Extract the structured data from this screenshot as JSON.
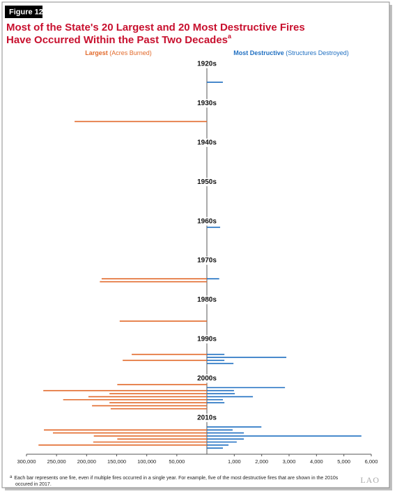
{
  "figure": "Figure 12",
  "chart_data": {
    "type": "butterfly-bar",
    "title": [
      "Most of the State's 20 Largest and 20 Most Destructive Fires",
      "Have Occurred Within the Past Two Decades"
    ],
    "title_note": "a",
    "categories": [
      "1920s",
      null,
      null,
      null,
      null,
      null,
      null,
      null,
      null,
      null,
      null,
      null,
      null,
      "1930s",
      null,
      null,
      null,
      null,
      null,
      null,
      null,
      null,
      null,
      null,
      null,
      null,
      "1940s",
      null,
      null,
      null,
      null,
      null,
      null,
      null,
      null,
      null,
      null,
      null,
      null,
      "1950s",
      null,
      null,
      null,
      null,
      null,
      null,
      null,
      null,
      null,
      null,
      null,
      null,
      "1960s",
      null,
      null,
      null,
      null,
      null,
      null,
      null,
      null,
      null,
      null,
      null,
      null,
      "1970s",
      null,
      null,
      null,
      null,
      null,
      null,
      null,
      null,
      null,
      null,
      null,
      null,
      "1980s",
      null,
      null,
      null,
      null,
      null,
      null,
      null,
      null,
      null,
      null,
      null,
      null,
      "1990s",
      null,
      null,
      null,
      null,
      null,
      null,
      null,
      null,
      null,
      null,
      null,
      null,
      "2000s",
      null,
      null,
      null,
      null,
      null,
      null,
      null,
      null,
      null,
      null,
      null,
      null,
      "2010s",
      null,
      null,
      null,
      null,
      null,
      null,
      null,
      null,
      null,
      null
    ],
    "series": [
      {
        "name": "Largest",
        "name_note": "(Acres Burned)",
        "color": "#e2692a",
        "side": "left",
        "xlim": [
          0,
          300000
        ],
        "xticks": [
          {
            "value": 300000,
            "label": "300,000"
          },
          {
            "value": 250000,
            "label": "250,000"
          },
          {
            "value": 200000,
            "label": "200,000"
          },
          {
            "value": 150000,
            "label": "150,000"
          },
          {
            "value": 100000,
            "label": "100,000"
          },
          {
            "value": 50000,
            "label": "50,000"
          }
        ],
        "values": [
          null,
          null,
          null,
          null,
          null,
          null,
          null,
          null,
          null,
          null,
          null,
          null,
          null,
          null,
          null,
          null,
          null,
          null,
          null,
          220000,
          null,
          null,
          null,
          null,
          null,
          null,
          null,
          null,
          null,
          null,
          null,
          null,
          null,
          null,
          null,
          null,
          null,
          null,
          null,
          null,
          null,
          null,
          null,
          null,
          null,
          null,
          null,
          null,
          null,
          null,
          null,
          null,
          null,
          null,
          null,
          null,
          null,
          null,
          null,
          null,
          null,
          null,
          null,
          null,
          null,
          null,
          null,
          null,
          null,
          null,
          null,
          175000,
          178000,
          null,
          null,
          null,
          null,
          null,
          null,
          null,
          null,
          null,
          null,
          null,
          null,
          145000,
          null,
          null,
          null,
          null,
          null,
          null,
          null,
          null,
          null,
          null,
          125000,
          null,
          140000,
          null,
          null,
          null,
          null,
          null,
          null,
          null,
          149000,
          null,
          272000,
          162000,
          197000,
          239000,
          162000,
          191000,
          160000,
          null,
          null,
          null,
          null,
          null,
          null,
          271000,
          256000,
          188000,
          149000,
          189000,
          280000,
          null
        ]
      },
      {
        "name": "Most Destructive",
        "name_note": "(Structures Destroyed)",
        "color": "#1f6fc1",
        "side": "right",
        "xlim": [
          0,
          6000
        ],
        "xticks": [
          {
            "value": 1000,
            "label": "1,000"
          },
          {
            "value": 2000,
            "label": "2,000"
          },
          {
            "value": 3000,
            "label": "3,000"
          },
          {
            "value": 4000,
            "label": "4,000"
          },
          {
            "value": 5000,
            "label": "5,000"
          },
          {
            "value": 6000,
            "label": "6,000"
          }
        ],
        "values": [
          null,
          null,
          null,
          null,
          null,
          null,
          584,
          null,
          null,
          null,
          null,
          null,
          null,
          null,
          null,
          null,
          null,
          null,
          null,
          null,
          null,
          null,
          null,
          null,
          null,
          null,
          null,
          null,
          null,
          null,
          null,
          null,
          null,
          null,
          null,
          null,
          null,
          null,
          null,
          null,
          null,
          null,
          null,
          null,
          null,
          null,
          null,
          null,
          null,
          null,
          null,
          null,
          null,
          null,
          484,
          null,
          null,
          null,
          null,
          null,
          null,
          null,
          null,
          null,
          null,
          null,
          null,
          null,
          null,
          null,
          null,
          450,
          null,
          null,
          null,
          null,
          null,
          null,
          null,
          null,
          null,
          null,
          null,
          null,
          null,
          null,
          null,
          null,
          null,
          null,
          null,
          null,
          null,
          null,
          null,
          null,
          640,
          2900,
          640,
          970,
          null,
          null,
          null,
          null,
          null,
          null,
          null,
          2850,
          990,
          1020,
          1680,
          585,
          640,
          null,
          null,
          null,
          null,
          null,
          null,
          null,
          1990,
          940,
          1350,
          5640,
          1350,
          1090,
          790,
          585
        ]
      }
    ]
  },
  "footnote": {
    "marker": "a",
    "lines": [
      "Each bar represents one fire, even if multiple fires occurred in a single year. For example, five of the most destructive fires that are shown in the 2010s",
      "occured in 2017."
    ]
  },
  "logo": "LAO"
}
